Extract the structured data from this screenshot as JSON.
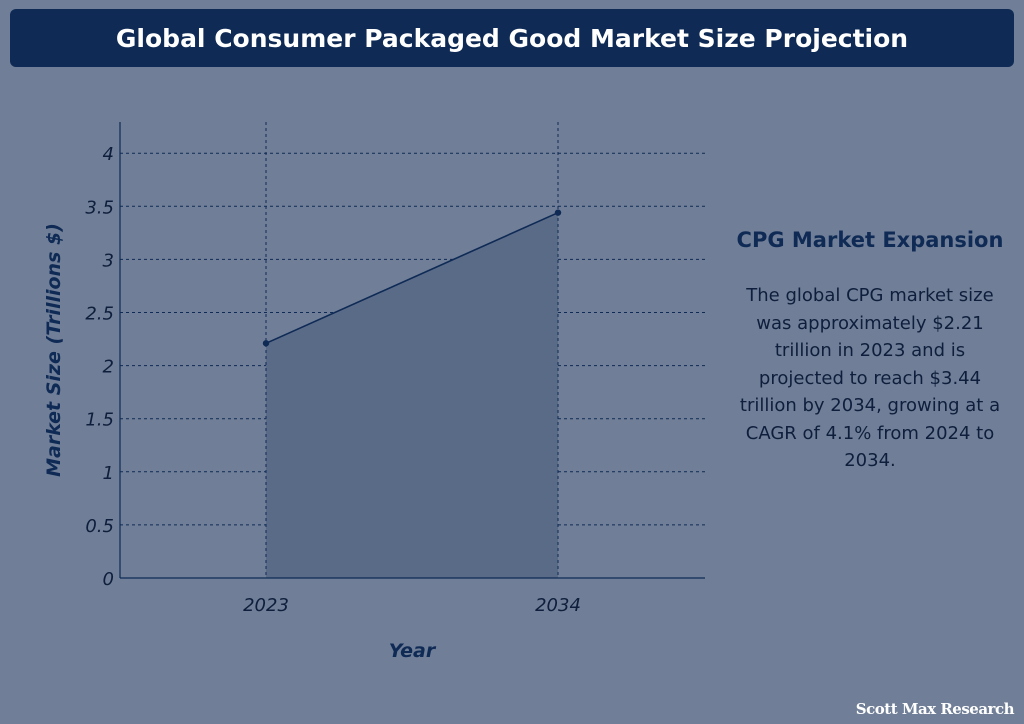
{
  "title": "Global Consumer Packaged Good Market Size Projection",
  "side_panel": {
    "heading": "CPG Market Expansion",
    "body": "The global CPG market size was approximately $2.21 trillion in 2023 and is projected to reach $3.44 trillion by 2034, growing at a CAGR of 4.1% from 2024 to 2034."
  },
  "watermark": "Scott Max Research",
  "colors": {
    "background": "#707f97",
    "title_bar": "#0e2a55",
    "line": "#0e2a55",
    "area_fill": "#5a6b88",
    "text": "#0e2a55"
  },
  "chart_data": {
    "type": "area",
    "x": [
      "2023",
      "2034"
    ],
    "values": [
      2.21,
      3.44
    ],
    "xlabel": "Year",
    "ylabel": "Market Size (Trillions $)",
    "ylim": [
      0,
      4.3
    ],
    "yticks": [
      "0",
      "0.5",
      "1",
      "1.5",
      "2",
      "2.5",
      "3",
      "3.5",
      "4"
    ],
    "grid": true
  }
}
